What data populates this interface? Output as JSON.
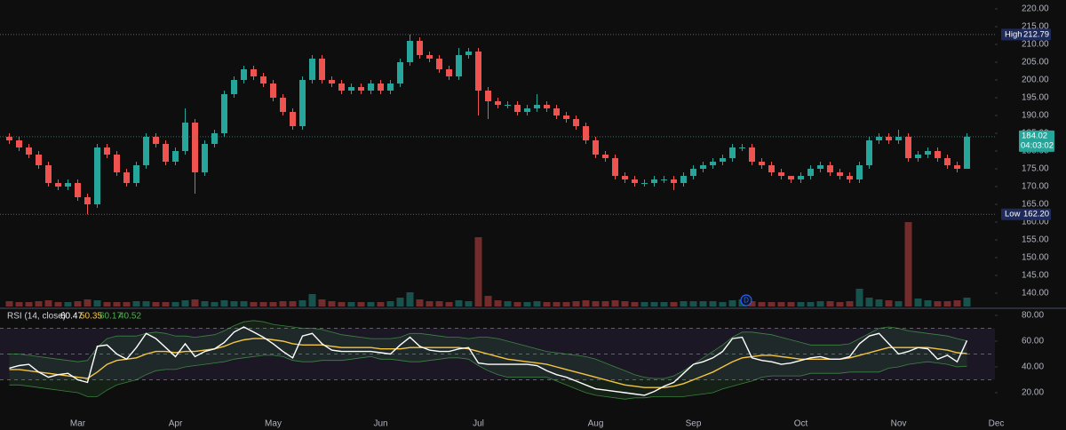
{
  "chart_data": [
    {
      "type": "candlestick",
      "categories": [
        null,
        null,
        null,
        null,
        null,
        null,
        null,
        "Mar",
        null,
        null,
        null,
        null,
        null,
        null,
        null,
        null,
        null,
        "Apr",
        null,
        null,
        null,
        null,
        null,
        null,
        null,
        null,
        null,
        "May",
        null,
        null,
        null,
        null,
        null,
        null,
        null,
        null,
        null,
        null,
        "Jun",
        null,
        null,
        null,
        null,
        null,
        null,
        null,
        null,
        null,
        "Jul",
        null,
        null,
        null,
        null,
        null,
        null,
        null,
        null,
        null,
        null,
        null,
        "Aug",
        null,
        null,
        null,
        null,
        null,
        null,
        null,
        null,
        null,
        "Sep",
        null,
        null,
        null,
        null,
        null,
        null,
        null,
        null,
        null,
        null,
        "Oct",
        null,
        null,
        null,
        null,
        null,
        null,
        null,
        null,
        null,
        "Nov",
        null,
        null,
        null,
        null,
        null,
        null,
        null,
        null,
        null,
        "Dec"
      ],
      "open": [
        184,
        183,
        181,
        179,
        176,
        171,
        170,
        171,
        167,
        165,
        181,
        179,
        174,
        171,
        176,
        184,
        182,
        177,
        180,
        188,
        174,
        182,
        185,
        196,
        200,
        203,
        201,
        199,
        195,
        191,
        187,
        200,
        206,
        200,
        199,
        197,
        198,
        197,
        199,
        197,
        199,
        205,
        211,
        207,
        206,
        203,
        201,
        207,
        208,
        197,
        194,
        193,
        193,
        191,
        192,
        193,
        192,
        190,
        189,
        187,
        183,
        179,
        178,
        173,
        172,
        171,
        171,
        172,
        172,
        171,
        173,
        175,
        176,
        177,
        178,
        181,
        181,
        177,
        176,
        174,
        173,
        172,
        173,
        175,
        176,
        174,
        173,
        172,
        176,
        183,
        184,
        183,
        184,
        178,
        179,
        180,
        178,
        176,
        175,
        null,
        null,
        null
      ],
      "high": [
        185,
        184,
        182,
        180,
        177,
        172,
        172,
        172,
        168,
        182,
        182,
        180,
        175,
        177,
        185,
        185,
        183,
        181,
        192,
        189,
        183,
        186,
        197,
        201,
        204,
        204,
        202,
        200,
        196,
        192,
        201,
        207,
        207,
        201,
        200,
        199,
        199,
        200,
        200,
        200,
        206,
        212.79,
        212,
        208,
        207,
        204,
        209,
        209,
        209,
        198,
        195,
        194,
        194,
        193,
        196,
        194,
        193,
        191,
        190,
        188,
        184,
        180,
        179,
        174,
        173,
        172,
        173,
        173,
        173,
        174,
        176,
        177,
        178,
        179,
        182,
        182,
        182,
        178,
        177,
        175,
        173,
        174,
        176,
        177,
        177,
        175,
        174,
        177,
        184,
        185,
        185,
        186,
        185,
        180,
        181,
        181,
        179,
        177,
        185,
        null,
        null,
        null
      ],
      "low": [
        182,
        180,
        178,
        175,
        170,
        169,
        169,
        166,
        162.2,
        164,
        178,
        173,
        170,
        170,
        175,
        181,
        176,
        176,
        179,
        168,
        173,
        181,
        184,
        195,
        199,
        200,
        198,
        194,
        190,
        186,
        186,
        199,
        199,
        198,
        196,
        196,
        196,
        196,
        196,
        196,
        198,
        204,
        206,
        205,
        202,
        200,
        200,
        206,
        190,
        189,
        192,
        192,
        190,
        190,
        191,
        191,
        189,
        188,
        186,
        182,
        178,
        177,
        172,
        171,
        170,
        170,
        170,
        171,
        169,
        170,
        172,
        174,
        175,
        176,
        177,
        180,
        176,
        175,
        173,
        172,
        171,
        171,
        172,
        174,
        173,
        172,
        171,
        171,
        175,
        182,
        182,
        182,
        177,
        177,
        178,
        177,
        175,
        174,
        175,
        null,
        null,
        null
      ],
      "close": [
        183,
        181,
        179,
        176,
        171,
        170,
        171,
        167,
        165,
        181,
        179,
        174,
        171,
        176,
        184,
        182,
        177,
        180,
        188,
        174,
        182,
        185,
        196,
        200,
        203,
        201,
        199,
        195,
        191,
        187,
        200,
        206,
        200,
        199,
        197,
        198,
        197,
        199,
        197,
        199,
        205,
        211,
        207,
        206,
        203,
        201,
        207,
        208,
        197,
        194,
        193,
        193,
        191,
        192,
        193,
        192,
        190,
        189,
        187,
        183,
        179,
        178,
        173,
        172,
        171,
        171,
        172,
        172,
        171,
        173,
        175,
        176,
        177,
        178,
        181,
        181,
        177,
        176,
        174,
        173,
        172,
        173,
        175,
        176,
        174,
        173,
        172,
        176,
        183,
        184,
        183,
        184,
        178,
        179,
        180,
        178,
        176,
        175,
        184.02,
        null,
        null,
        null
      ],
      "volume": [
        6,
        5,
        5,
        6,
        7,
        5,
        5,
        6,
        8,
        7,
        5,
        5,
        5,
        6,
        6,
        5,
        5,
        5,
        7,
        8,
        6,
        5,
        7,
        6,
        6,
        5,
        5,
        5,
        6,
        6,
        7,
        14,
        8,
        6,
        5,
        5,
        5,
        5,
        5,
        6,
        10,
        16,
        8,
        6,
        6,
        5,
        7,
        6,
        78,
        12,
        7,
        6,
        5,
        5,
        6,
        5,
        5,
        5,
        6,
        7,
        6,
        6,
        7,
        6,
        5,
        5,
        5,
        5,
        5,
        6,
        6,
        6,
        6,
        5,
        7,
        8,
        6,
        5,
        5,
        5,
        5,
        5,
        5,
        6,
        6,
        5,
        6,
        20,
        10,
        8,
        7,
        6,
        95,
        9,
        7,
        6,
        6,
        7,
        10,
        null,
        null,
        null
      ],
      "up_color": "#26a69a",
      "down_color": "#ef5350",
      "ylim": [
        136.25,
        222.5
      ],
      "yticks": [
        {
          "value": 140,
          "label": "140.00"
        },
        {
          "value": 145,
          "label": "145.00"
        },
        {
          "value": 150,
          "label": "150.00"
        },
        {
          "value": 155,
          "label": "155.00"
        },
        {
          "value": 160,
          "label": "160.00"
        },
        {
          "value": 165,
          "label": "165.00"
        },
        {
          "value": 170,
          "label": "170.00"
        },
        {
          "value": 175,
          "label": "175.00"
        },
        {
          "value": 180,
          "label": "180.00"
        },
        {
          "value": 185,
          "label": "185.00"
        },
        {
          "value": 190,
          "label": "190.00"
        },
        {
          "value": 195,
          "label": "195.00"
        },
        {
          "value": 200,
          "label": "200.00"
        },
        {
          "value": 205,
          "label": "205.00"
        },
        {
          "value": 210,
          "label": "210.00"
        },
        {
          "value": 215,
          "label": "215.00"
        },
        {
          "value": 220,
          "label": "220.00"
        }
      ],
      "price_lines": [
        {
          "name": "High",
          "value": 212.79
        },
        {
          "name": "Low",
          "value": 162.2,
          "label": "162.20"
        }
      ],
      "countdown": "04:03:02",
      "dividend_marker": "D"
    },
    {
      "type": "line",
      "title": "RSI (14, close)",
      "series": [
        {
          "color": "#ffffff",
          "values": [
            39,
            41,
            42,
            36,
            32,
            34,
            35,
            30,
            28,
            56,
            57,
            50,
            46,
            55,
            66,
            62,
            55,
            48,
            58,
            48,
            52,
            54,
            59,
            67,
            71,
            67,
            63,
            58,
            52,
            47,
            64,
            66,
            58,
            53,
            52,
            52,
            52,
            52,
            51,
            50,
            57,
            63,
            56,
            53,
            52,
            52,
            54,
            55,
            43,
            42,
            42,
            42,
            42,
            42,
            41,
            37,
            34,
            32,
            29,
            26,
            23,
            22,
            21,
            20,
            19,
            18,
            21,
            25,
            28,
            35,
            42,
            44,
            47,
            52,
            62,
            63,
            47,
            45,
            44,
            42,
            43,
            45,
            47,
            48,
            46,
            46,
            48,
            58,
            64,
            66,
            58,
            50,
            52,
            55,
            54,
            46,
            49,
            44,
            60.47,
            null,
            null,
            null
          ]
        },
        {
          "color": "#f5c542",
          "values": [
            38,
            38,
            37,
            36,
            35,
            34,
            33,
            32,
            31,
            36,
            42,
            45,
            46,
            47,
            50,
            52,
            52,
            51,
            52,
            52,
            53,
            54,
            56,
            59,
            61,
            62,
            62,
            61,
            60,
            58,
            57,
            57,
            57,
            56,
            55,
            55,
            55,
            55,
            54,
            54,
            54,
            55,
            55,
            55,
            55,
            55,
            55,
            54,
            52,
            50,
            48,
            46,
            45,
            44,
            43,
            42,
            40,
            38,
            36,
            34,
            32,
            30,
            28,
            26,
            25,
            24,
            24,
            24,
            25,
            27,
            30,
            33,
            36,
            40,
            44,
            47,
            48,
            49,
            49,
            48,
            47,
            46,
            46,
            46,
            46,
            46,
            47,
            49,
            51,
            53,
            55,
            55,
            55,
            55,
            55,
            54,
            53,
            51,
            50.35,
            null,
            null,
            null
          ]
        },
        {
          "color": "#4caf50",
          "values": [
            50,
            50,
            49,
            48,
            47,
            46,
            45,
            44,
            45,
            55,
            62,
            64,
            64,
            64,
            66,
            67,
            66,
            64,
            64,
            63,
            64,
            65,
            68,
            72,
            75,
            76,
            75,
            73,
            72,
            71,
            70,
            70,
            69,
            67,
            65,
            64,
            63,
            62,
            62,
            62,
            63,
            66,
            66,
            65,
            64,
            63,
            63,
            62,
            63,
            63,
            62,
            60,
            58,
            56,
            54,
            52,
            51,
            50,
            49,
            48,
            46,
            43,
            40,
            37,
            34,
            32,
            31,
            31,
            33,
            37,
            42,
            47,
            52,
            57,
            63,
            67,
            67,
            66,
            65,
            63,
            61,
            59,
            57,
            57,
            57,
            57,
            58,
            62,
            66,
            70,
            71,
            70,
            68,
            67,
            66,
            65,
            64,
            62,
            60.17,
            null,
            null,
            null
          ]
        },
        {
          "color": "#4caf50",
          "values": [
            26,
            26,
            25,
            24,
            23,
            22,
            21,
            20,
            17,
            17,
            22,
            26,
            28,
            30,
            34,
            37,
            38,
            38,
            40,
            41,
            42,
            43,
            44,
            46,
            47,
            48,
            49,
            49,
            48,
            45,
            44,
            44,
            45,
            45,
            45,
            46,
            47,
            48,
            46,
            46,
            45,
            44,
            44,
            45,
            46,
            47,
            47,
            46,
            41,
            37,
            34,
            32,
            32,
            32,
            32,
            32,
            29,
            26,
            23,
            20,
            18,
            17,
            16,
            15,
            16,
            16,
            17,
            17,
            17,
            17,
            18,
            19,
            20,
            23,
            25,
            27,
            29,
            32,
            33,
            33,
            33,
            33,
            35,
            35,
            35,
            35,
            36,
            36,
            36,
            36,
            39,
            40,
            42,
            43,
            44,
            43,
            42,
            40,
            40.52,
            null,
            null,
            null
          ]
        }
      ],
      "ylim": [
        0.7,
        84.8
      ],
      "yticks": [
        {
          "value": 20,
          "label": "20.00"
        },
        {
          "value": 40,
          "label": "40.00"
        },
        {
          "value": 60,
          "label": "60.00"
        },
        {
          "value": 80,
          "label": "80.00"
        }
      ],
      "levels": [
        30,
        50,
        70
      ],
      "band_color": "#7e57c2"
    }
  ]
}
